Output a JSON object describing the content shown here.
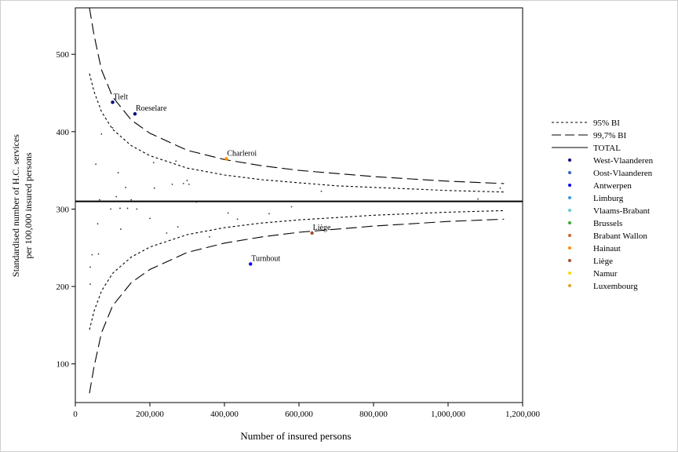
{
  "chart_data": {
    "type": "scatter",
    "title": "",
    "xlabel": "Number of insured persons",
    "ylabel_lines": [
      "Standardised number of H.C. services",
      "per 100,000 insured persons"
    ],
    "xlim": [
      0,
      1200000
    ],
    "ylim": [
      50,
      560
    ],
    "x_ticks": [
      0,
      200000,
      400000,
      600000,
      800000,
      1000000,
      1200000
    ],
    "x_tick_labels": [
      "0",
      "200,000",
      "400,000",
      "600,000",
      "800,000",
      "1,000,000",
      "1,200,000"
    ],
    "y_ticks": [
      100,
      200,
      300,
      400,
      500
    ],
    "y_tick_labels": [
      "100",
      "200",
      "300",
      "400",
      "500"
    ],
    "total_line": 310,
    "funnel": {
      "x": [
        38000,
        50000,
        70000,
        100000,
        150000,
        200000,
        300000,
        400000,
        500000,
        600000,
        700000,
        800000,
        900000,
        1000000,
        1150000
      ],
      "upper_95": [
        475,
        452,
        426,
        403,
        382,
        369,
        353,
        344,
        338,
        334,
        330,
        328,
        326,
        324,
        322
      ],
      "lower_95": [
        144,
        168,
        194,
        217,
        238,
        251,
        267,
        276,
        282,
        286,
        289,
        292,
        294,
        296,
        298
      ],
      "upper_997": [
        560,
        525,
        480,
        445,
        415,
        398,
        376,
        364,
        356,
        350,
        346,
        342,
        339,
        336,
        333
      ],
      "lower_997": [
        62,
        96,
        140,
        175,
        205,
        222,
        244,
        256,
        264,
        270,
        274,
        278,
        281,
        284,
        287
      ]
    },
    "legend": {
      "placement": "right",
      "line_items": [
        {
          "label": "95% BI",
          "style": "dotted"
        },
        {
          "label": "99,7% BI",
          "style": "dashed"
        },
        {
          "label": "TOTAL",
          "style": "solid"
        }
      ],
      "color_items": [
        {
          "label": "West-Vlaanderen",
          "color": "#00007f"
        },
        {
          "label": "Oost-Vlaanderen",
          "color": "#3366cc"
        },
        {
          "label": "Antwerpen",
          "color": "#0000ee"
        },
        {
          "label": "Limburg",
          "color": "#3399e6"
        },
        {
          "label": "Vlaams-Brabant",
          "color": "#66cccc"
        },
        {
          "label": "Brussels",
          "color": "#33aa33"
        },
        {
          "label": "Brabant Wallon",
          "color": "#cc6633"
        },
        {
          "label": "Hainaut",
          "color": "#ff8c00"
        },
        {
          "label": "Liège",
          "color": "#a0522d"
        },
        {
          "label": "Namur",
          "color": "#ffd700"
        },
        {
          "label": "Luxembourg",
          "color": "#e6a020"
        }
      ]
    },
    "labeled_points": [
      {
        "label": "Tielt",
        "x": 100000,
        "y": 438,
        "color": "#00007f"
      },
      {
        "label": "Roeselare",
        "x": 160000,
        "y": 423,
        "color": "#00007f"
      },
      {
        "label": "Charleroi",
        "x": 405000,
        "y": 365,
        "color": "#ff8c00"
      },
      {
        "label": "Liège",
        "x": 635000,
        "y": 269,
        "color": "#a0522d"
      },
      {
        "label": "Turnhout",
        "x": 470000,
        "y": 229,
        "color": "#0000ee"
      }
    ],
    "points": [
      {
        "x": 40000,
        "y": 225
      },
      {
        "x": 40000,
        "y": 203
      },
      {
        "x": 45000,
        "y": 241
      },
      {
        "x": 55000,
        "y": 358
      },
      {
        "x": 60000,
        "y": 281
      },
      {
        "x": 62000,
        "y": 242
      },
      {
        "x": 65000,
        "y": 312
      },
      {
        "x": 70000,
        "y": 397
      },
      {
        "x": 95000,
        "y": 300
      },
      {
        "x": 100000,
        "y": 405
      },
      {
        "x": 110000,
        "y": 316
      },
      {
        "x": 115000,
        "y": 347
      },
      {
        "x": 120000,
        "y": 301
      },
      {
        "x": 122000,
        "y": 274
      },
      {
        "x": 135000,
        "y": 328
      },
      {
        "x": 140000,
        "y": 301
      },
      {
        "x": 150000,
        "y": 312
      },
      {
        "x": 165000,
        "y": 300
      },
      {
        "x": 200000,
        "y": 288
      },
      {
        "x": 210000,
        "y": 360
      },
      {
        "x": 212000,
        "y": 327
      },
      {
        "x": 245000,
        "y": 269
      },
      {
        "x": 260000,
        "y": 332
      },
      {
        "x": 270000,
        "y": 362
      },
      {
        "x": 275000,
        "y": 277
      },
      {
        "x": 290000,
        "y": 333
      },
      {
        "x": 300000,
        "y": 337
      },
      {
        "x": 305000,
        "y": 332
      },
      {
        "x": 325000,
        "y": 309
      },
      {
        "x": 360000,
        "y": 264
      },
      {
        "x": 410000,
        "y": 295
      },
      {
        "x": 435000,
        "y": 287
      },
      {
        "x": 520000,
        "y": 294
      },
      {
        "x": 580000,
        "y": 303
      },
      {
        "x": 660000,
        "y": 323
      },
      {
        "x": 1080000,
        "y": 313
      },
      {
        "x": 1140000,
        "y": 327
      }
    ]
  }
}
